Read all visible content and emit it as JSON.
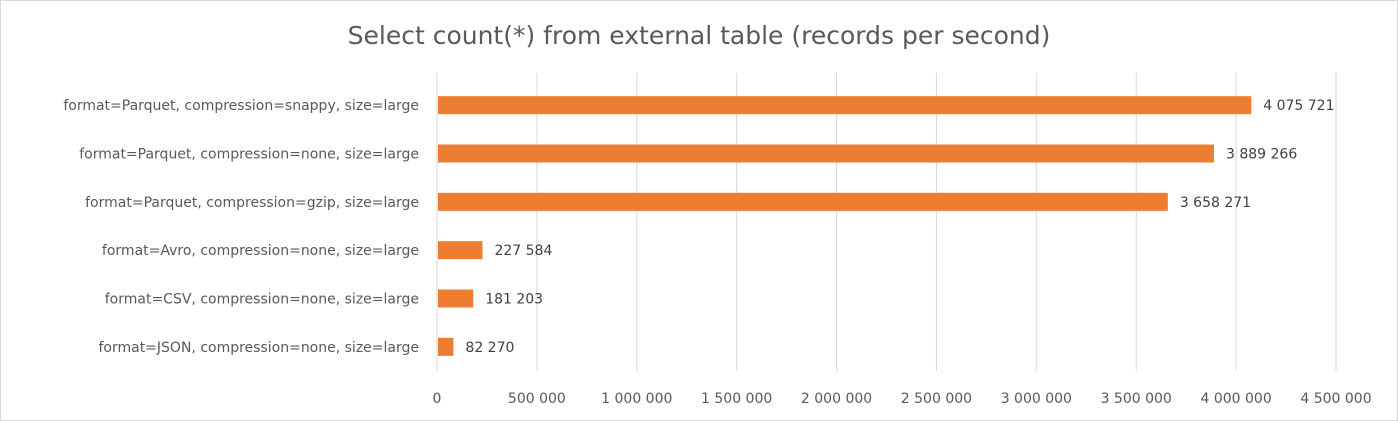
{
  "colors": {
    "bar": "#ED7D31",
    "grid": "#D9D9D9",
    "text": "#595959"
  },
  "chart_data": {
    "type": "bar",
    "orientation": "horizontal",
    "title": "Select count(*) from external table (records per second)",
    "categories": [
      "format=Parquet, compression=snappy, size=large",
      "format=Parquet, compression=none, size=large",
      "format=Parquet, compression=gzip, size=large",
      "format=Avro, compression=none, size=large",
      "format=CSV, compression=none, size=large",
      "format=JSON, compression=none, size=large"
    ],
    "values": [
      4075721,
      3889266,
      3658271,
      227584,
      181203,
      82270
    ],
    "value_labels": [
      "4 075 721",
      "3 889 266",
      "3 658 271",
      "227 584",
      "181 203",
      "82 270"
    ],
    "xlim": [
      0,
      4500000
    ],
    "x_ticks": [
      0,
      500000,
      1000000,
      1500000,
      2000000,
      2500000,
      3000000,
      3500000,
      4000000,
      4500000
    ],
    "x_tick_labels": [
      "0",
      "500 000",
      "1 000 000",
      "1 500 000",
      "2 000 000",
      "2 500 000",
      "3 000 000",
      "3 500 000",
      "4 000 000",
      "4 500 000"
    ],
    "grid": true,
    "legend": "none"
  }
}
